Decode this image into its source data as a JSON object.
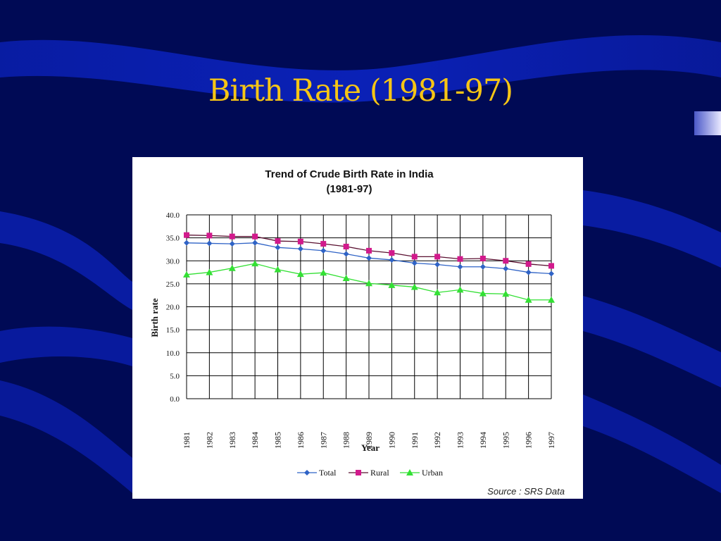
{
  "slide": {
    "title": "Birth Rate (1981-97)"
  },
  "colors": {
    "background": "#000b5a",
    "title": "#f6c515",
    "total": "#2f63c6",
    "rural": "#d21a8c",
    "urban": "#33e034"
  },
  "chart_data": {
    "type": "line",
    "title_line1": "Trend of Crude Birth Rate in India",
    "title_line2": "(1981-97)",
    "xlabel": "Year",
    "ylabel": "Birth rate",
    "ylim": [
      0,
      40
    ],
    "yticks": [
      "0.0",
      "5.0",
      "10.0",
      "15.0",
      "20.0",
      "25.0",
      "30.0",
      "35.0",
      "40.0"
    ],
    "ytick_values": [
      0,
      5,
      10,
      15,
      20,
      25,
      30,
      35,
      40
    ],
    "grid": true,
    "legend_position": "bottom",
    "categories": [
      "1981",
      "1982",
      "1983",
      "1984",
      "1985",
      "1986",
      "1987",
      "1988",
      "1989",
      "1990",
      "1991",
      "1992",
      "1993",
      "1994",
      "1995",
      "1996",
      "1997"
    ],
    "series": [
      {
        "name": "Total",
        "marker": "diamond",
        "colorKey": "total",
        "values": [
          33.9,
          33.8,
          33.7,
          33.9,
          32.9,
          32.6,
          32.2,
          31.5,
          30.6,
          30.2,
          29.5,
          29.2,
          28.7,
          28.7,
          28.3,
          27.5,
          27.2
        ]
      },
      {
        "name": "Rural",
        "marker": "square",
        "colorKey": "rural",
        "values": [
          35.6,
          35.5,
          35.3,
          35.3,
          34.3,
          34.2,
          33.7,
          33.1,
          32.2,
          31.7,
          30.9,
          30.9,
          30.4,
          30.5,
          30.0,
          29.3,
          28.9
        ]
      },
      {
        "name": "Urban",
        "marker": "triangle",
        "colorKey": "urban",
        "values": [
          27.0,
          27.5,
          28.4,
          29.4,
          28.1,
          27.1,
          27.4,
          26.2,
          25.1,
          24.7,
          24.3,
          23.1,
          23.7,
          22.9,
          22.8,
          21.5,
          21.5
        ]
      }
    ],
    "source": "Source : SRS Data"
  }
}
